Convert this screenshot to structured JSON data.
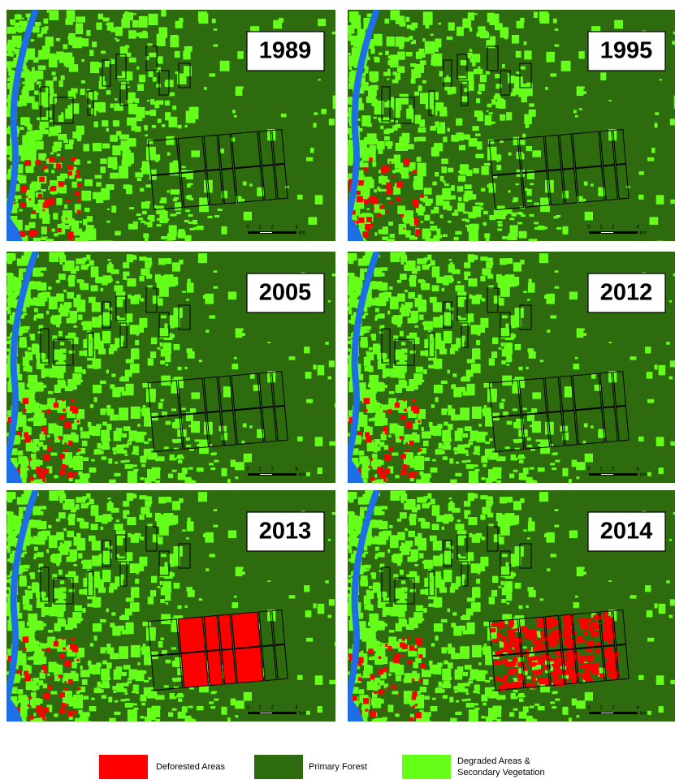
{
  "panels": [
    {
      "year": "1989"
    },
    {
      "year": "1995"
    },
    {
      "year": "2005"
    },
    {
      "year": "2012"
    },
    {
      "year": "2013"
    },
    {
      "year": "2014"
    }
  ],
  "scale_bar": {
    "labels": [
      "0",
      "1",
      "2",
      "4"
    ],
    "unit": "km"
  },
  "legend": [
    {
      "label_lines": [
        "Deforested Areas"
      ],
      "color": "#ff0000"
    },
    {
      "label_lines": [
        "Primary Forest"
      ],
      "color": "#2e6b0e"
    },
    {
      "label_lines": [
        "Degraded Areas &",
        "Secondary Vegetation"
      ],
      "color": "#66ff1a"
    }
  ]
}
